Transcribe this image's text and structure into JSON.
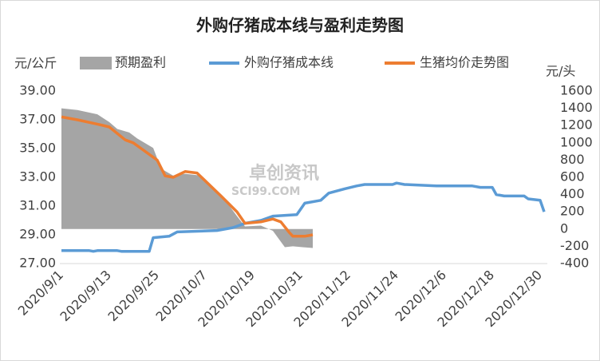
{
  "chart_data": {
    "type": "combo",
    "title": "外购仔猪成本线与盈利走势图",
    "y_label": "元/公斤",
    "y2_label": "元/头",
    "watermark": "卓创资讯",
    "watermark_sub": "SCI99.COM",
    "xlim": [
      "2020/9/1",
      "2020/12/31"
    ],
    "xticks": [
      "2020/9/1",
      "2020/9/13",
      "2020/9/25",
      "2020/10/7",
      "2020/10/19",
      "2020/10/31",
      "2020/11/12",
      "2020/11/24",
      "2020/12/6",
      "2020/12/18",
      "2020/12/30"
    ],
    "ylim": [
      27,
      39
    ],
    "yticks": [
      {
        "value": 27,
        "label": "27.00"
      },
      {
        "value": 29,
        "label": "29.00"
      },
      {
        "value": 31,
        "label": "31.00"
      },
      {
        "value": 33,
        "label": "33.00"
      },
      {
        "value": 35,
        "label": "35.00"
      },
      {
        "value": 37,
        "label": "37.00"
      },
      {
        "value": 39,
        "label": "39.00"
      }
    ],
    "y2lim": [
      -400,
      1600
    ],
    "y2ticks": [
      -400,
      -200,
      0,
      200,
      400,
      600,
      800,
      1000,
      1200,
      1400,
      1600
    ],
    "legend": "top",
    "series": [
      {
        "name": "预期盈利",
        "type": "area",
        "axis": "y2",
        "color": "#a5a5a5",
        "x": [
          "2020/9/1",
          "2020/9/5",
          "2020/9/10",
          "2020/9/13",
          "2020/9/15",
          "2020/9/18",
          "2020/9/20",
          "2020/9/24",
          "2020/9/26",
          "2020/9/29",
          "2020/10/2",
          "2020/10/6",
          "2020/10/11",
          "2020/10/15",
          "2020/10/17",
          "2020/10/21",
          "2020/10/24",
          "2020/10/27",
          "2020/10/29",
          "2020/11/3"
        ],
        "values": [
          1400,
          1380,
          1330,
          1240,
          1160,
          1120,
          1050,
          940,
          700,
          620,
          640,
          620,
          400,
          150,
          30,
          40,
          -20,
          -210,
          -200,
          -220
        ]
      },
      {
        "name": "外购仔猪成本线",
        "type": "line",
        "axis": "y",
        "color": "#5b9bd5",
        "x": [
          "2020/9/1",
          "2020/9/8",
          "2020/9/9",
          "2020/9/10",
          "2020/9/15",
          "2020/9/16",
          "2020/9/23",
          "2020/9/24",
          "2020/9/28",
          "2020/9/30",
          "2020/10/10",
          "2020/10/14",
          "2020/10/17",
          "2020/10/21",
          "2020/10/24",
          "2020/10/30",
          "2020/11/1",
          "2020/11/5",
          "2020/11/7",
          "2020/11/11",
          "2020/11/14",
          "2020/11/16",
          "2020/11/23",
          "2020/11/24",
          "2020/11/26",
          "2020/12/4",
          "2020/12/13",
          "2020/12/15",
          "2020/12/18",
          "2020/12/19",
          "2020/12/21",
          "2020/12/26",
          "2020/12/27",
          "2020/12/30",
          "2020/12/31"
        ],
        "values": [
          27.9,
          27.9,
          27.85,
          27.9,
          27.9,
          27.85,
          27.85,
          28.8,
          28.9,
          29.2,
          29.3,
          29.5,
          29.8,
          30.0,
          30.3,
          30.4,
          31.2,
          31.4,
          31.9,
          32.2,
          32.4,
          32.5,
          32.5,
          32.6,
          32.5,
          32.4,
          32.4,
          32.3,
          32.3,
          31.8,
          31.7,
          31.7,
          31.5,
          31.4,
          30.6
        ]
      },
      {
        "name": "生猪均价走势图",
        "type": "line",
        "axis": "y",
        "color": "#ed7d31",
        "x": [
          "2020/9/1",
          "2020/9/5",
          "2020/9/10",
          "2020/9/13",
          "2020/9/17",
          "2020/9/19",
          "2020/9/21",
          "2020/9/25",
          "2020/9/27",
          "2020/9/29",
          "2020/10/2",
          "2020/10/5",
          "2020/10/11",
          "2020/10/15",
          "2020/10/17",
          "2020/10/21",
          "2020/10/24",
          "2020/10/26",
          "2020/10/28",
          "2020/10/29",
          "2020/11/1",
          "2020/11/3"
        ],
        "values": [
          37.2,
          37.0,
          36.7,
          36.5,
          35.6,
          35.4,
          35.0,
          34.2,
          33.1,
          33.0,
          33.4,
          33.3,
          31.7,
          30.6,
          29.8,
          29.9,
          30.1,
          29.9,
          29.2,
          28.9,
          28.9,
          29.0
        ]
      }
    ]
  }
}
